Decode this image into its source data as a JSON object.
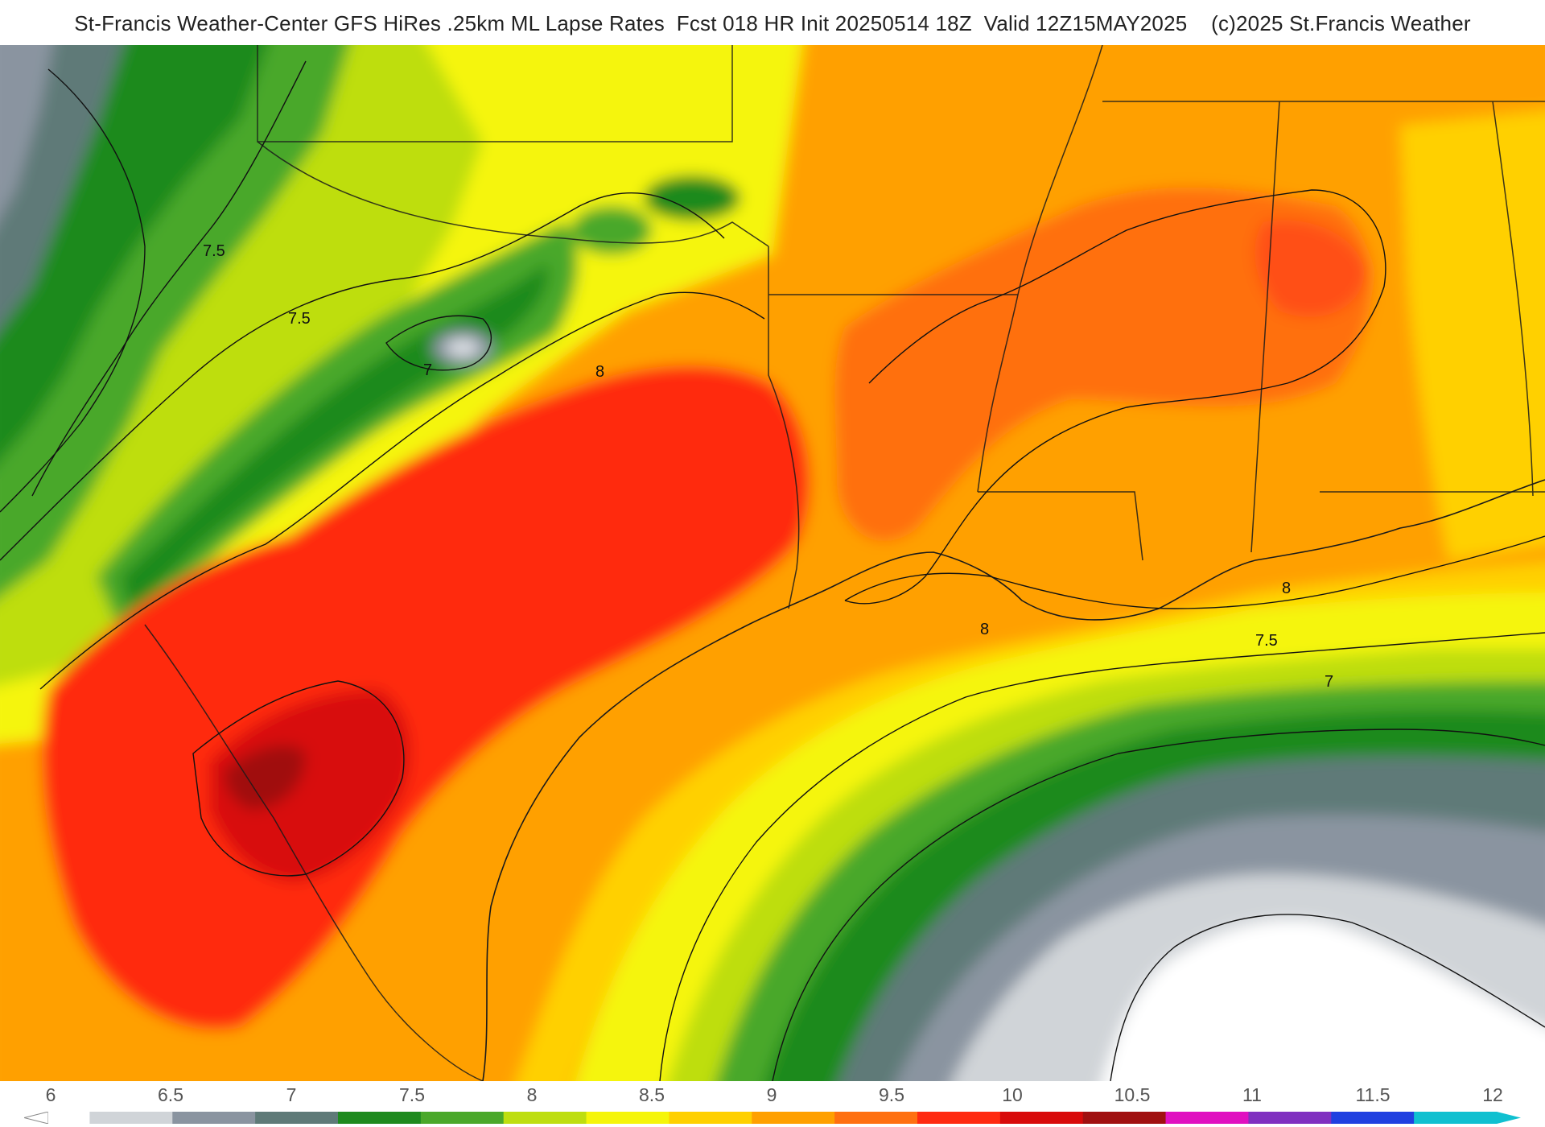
{
  "header": {
    "title": "St-Francis Weather-Center GFS HiRes .25km ML Lapse Rates  Fcst 018 HR Init 20250514 18Z  Valid 12Z15MAY2025    (c)2025 St.Francis Weather"
  },
  "map": {
    "variable": "ML Lapse Rates",
    "contour_labels": [
      {
        "text": "7.5"
      },
      {
        "text": "7.5"
      },
      {
        "text": "7"
      },
      {
        "text": "8"
      },
      {
        "text": "8"
      },
      {
        "text": "8"
      },
      {
        "text": "7.5"
      },
      {
        "text": "7"
      }
    ]
  },
  "legend": {
    "tick_labels": [
      "6",
      "6.5",
      "7",
      "7.5",
      "8",
      "8.5",
      "9",
      "9.5",
      "10",
      "10.5",
      "11",
      "11.5",
      "12"
    ],
    "min": 6,
    "max": 12,
    "colors": {
      "white": "#ffffff",
      "light_gray": "#d0d4d8",
      "gray": "#8a94a0",
      "slate": "#5f7a78",
      "dark_green": "#1e8a1e",
      "green": "#4aa82a",
      "yellow_green": "#bede10",
      "yellow": "#f5f50a",
      "gold": "#ffd000",
      "orange": "#ffa000",
      "dark_orange": "#ff7010",
      "red": "#ff2a10",
      "crimson": "#d80a0a",
      "dark_red": "#a01010",
      "magenta": "#e010c0",
      "purple": "#8030c0",
      "blue": "#2040e0",
      "cyan": "#10c0d0"
    }
  }
}
